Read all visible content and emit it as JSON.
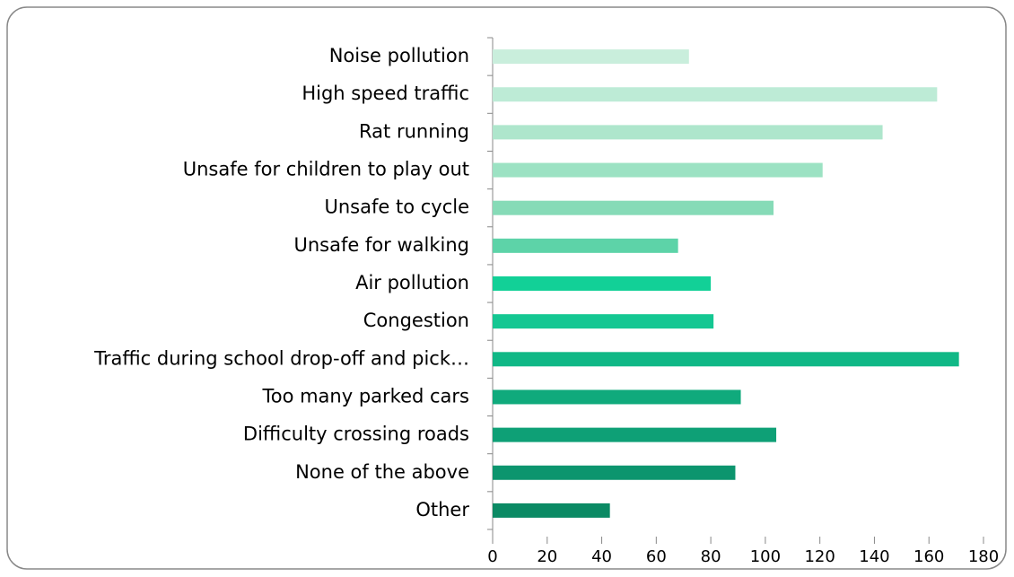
{
  "chart_data": {
    "type": "barh",
    "categories": [
      "Noise pollution",
      "High speed traffic",
      "Rat running",
      "Unsafe for children to play out",
      "Unsafe to cycle",
      "Unsafe for walking",
      "Air pollution",
      "Congestion",
      "Traffic during school drop-off and pick…",
      "Too many parked cars",
      "Difficulty crossing roads",
      "None of the above",
      "Other"
    ],
    "values": [
      72,
      163,
      143,
      121,
      103,
      68,
      80,
      81,
      171,
      91,
      104,
      89,
      43
    ],
    "colors": [
      "#c9eedc",
      "#bdebd6",
      "#aee6cc",
      "#9ce2c3",
      "#86dbb7",
      "#5dd3a8",
      "#12d097",
      "#14c792",
      "#10b886",
      "#10aa7c",
      "#0ea076",
      "#0c956e",
      "#0b8a64"
    ],
    "xlim": [
      0,
      180
    ],
    "xticks": [
      0,
      20,
      40,
      60,
      80,
      100,
      120,
      140,
      160,
      180
    ]
  }
}
